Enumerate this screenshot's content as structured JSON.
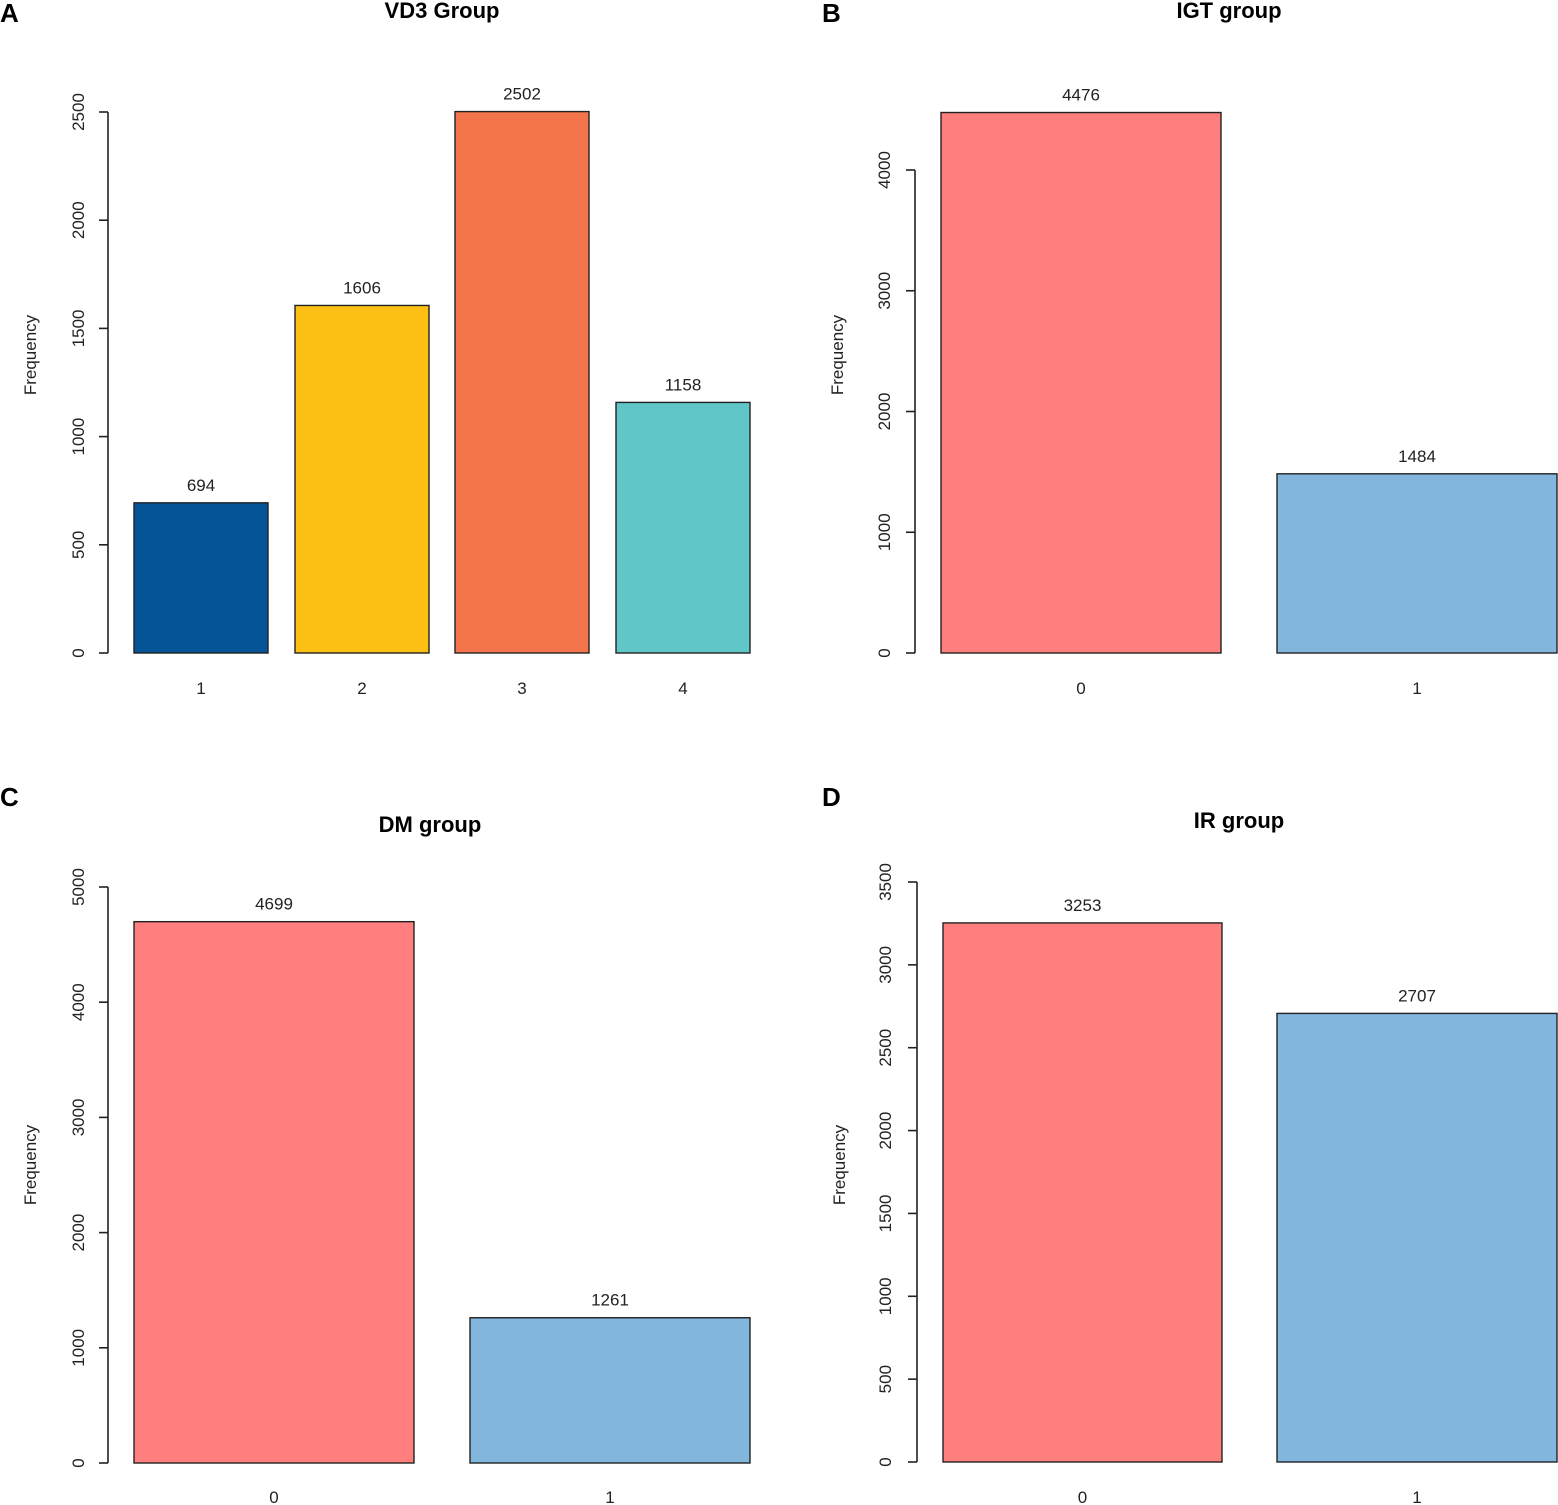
{
  "chart_data": [
    {
      "panel": "A",
      "type": "bar",
      "title": "VD3 Group",
      "ylabel": "Frequency",
      "xlabel": "",
      "ylim": [
        0,
        2500
      ],
      "yticks": [
        0,
        500,
        1000,
        1500,
        2000,
        2500
      ],
      "categories": [
        "1",
        "2",
        "3",
        "4"
      ],
      "values": [
        694,
        1606,
        2502,
        1158
      ],
      "colors": [
        "#045497",
        "#FBC013",
        "#F4754C",
        "#60C6C8"
      ]
    },
    {
      "panel": "B",
      "type": "bar",
      "title": "IGT group",
      "ylabel": "Frequency",
      "xlabel": "",
      "ylim": [
        0,
        4000
      ],
      "yticks": [
        0,
        1000,
        2000,
        3000,
        4000
      ],
      "categories": [
        "0",
        "1"
      ],
      "values": [
        4476,
        1484
      ],
      "colors": [
        "#FF7F7E",
        "#82B6DD"
      ]
    },
    {
      "panel": "C",
      "type": "bar",
      "title": "DM group",
      "ylabel": "Frequency",
      "xlabel": "",
      "ylim": [
        0,
        5000
      ],
      "yticks": [
        0,
        1000,
        2000,
        3000,
        4000,
        5000
      ],
      "categories": [
        "0",
        "1"
      ],
      "values": [
        4699,
        1261
      ],
      "colors": [
        "#FF7F7E",
        "#82B6DD"
      ]
    },
    {
      "panel": "D",
      "type": "bar",
      "title": "IR group",
      "ylabel": "Frequency",
      "xlabel": "",
      "ylim": [
        0,
        3500
      ],
      "yticks": [
        0,
        500,
        1000,
        1500,
        2000,
        2500,
        3000,
        3500
      ],
      "categories": [
        "0",
        "1"
      ],
      "values": [
        3253,
        2707
      ],
      "colors": [
        "#FF7F7E",
        "#82B6DD"
      ]
    }
  ]
}
